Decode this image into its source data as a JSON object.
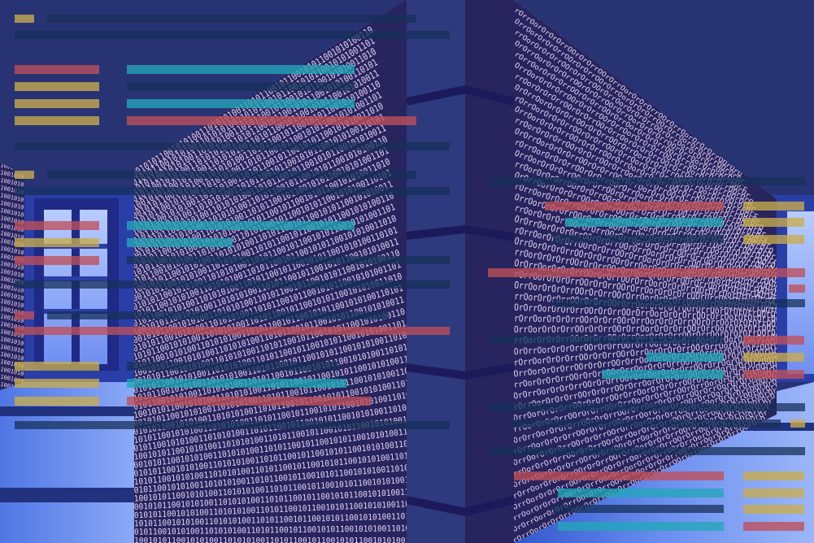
{
  "scene": {
    "binary_left": "1001010110010101001101010100110101100101",
    "binary_right": "OrOrrOorOrOrOrrOOrOrOrrOOrOrrOorOrOrOrrO"
  },
  "colors": {
    "sky": "#283374",
    "wall_dark": "#27245e",
    "wall_mid": "#2e3a7e",
    "floor_light": "#6e95f0",
    "floor_dark": "#2a4fc4",
    "digit": "#e6d4f2",
    "bar_teal": "#22a6b8",
    "bar_red": "#c0505a",
    "bar_gold": "#c9ad4c",
    "bar_navy": "#17305a",
    "window_light": "#8fb0ff"
  }
}
